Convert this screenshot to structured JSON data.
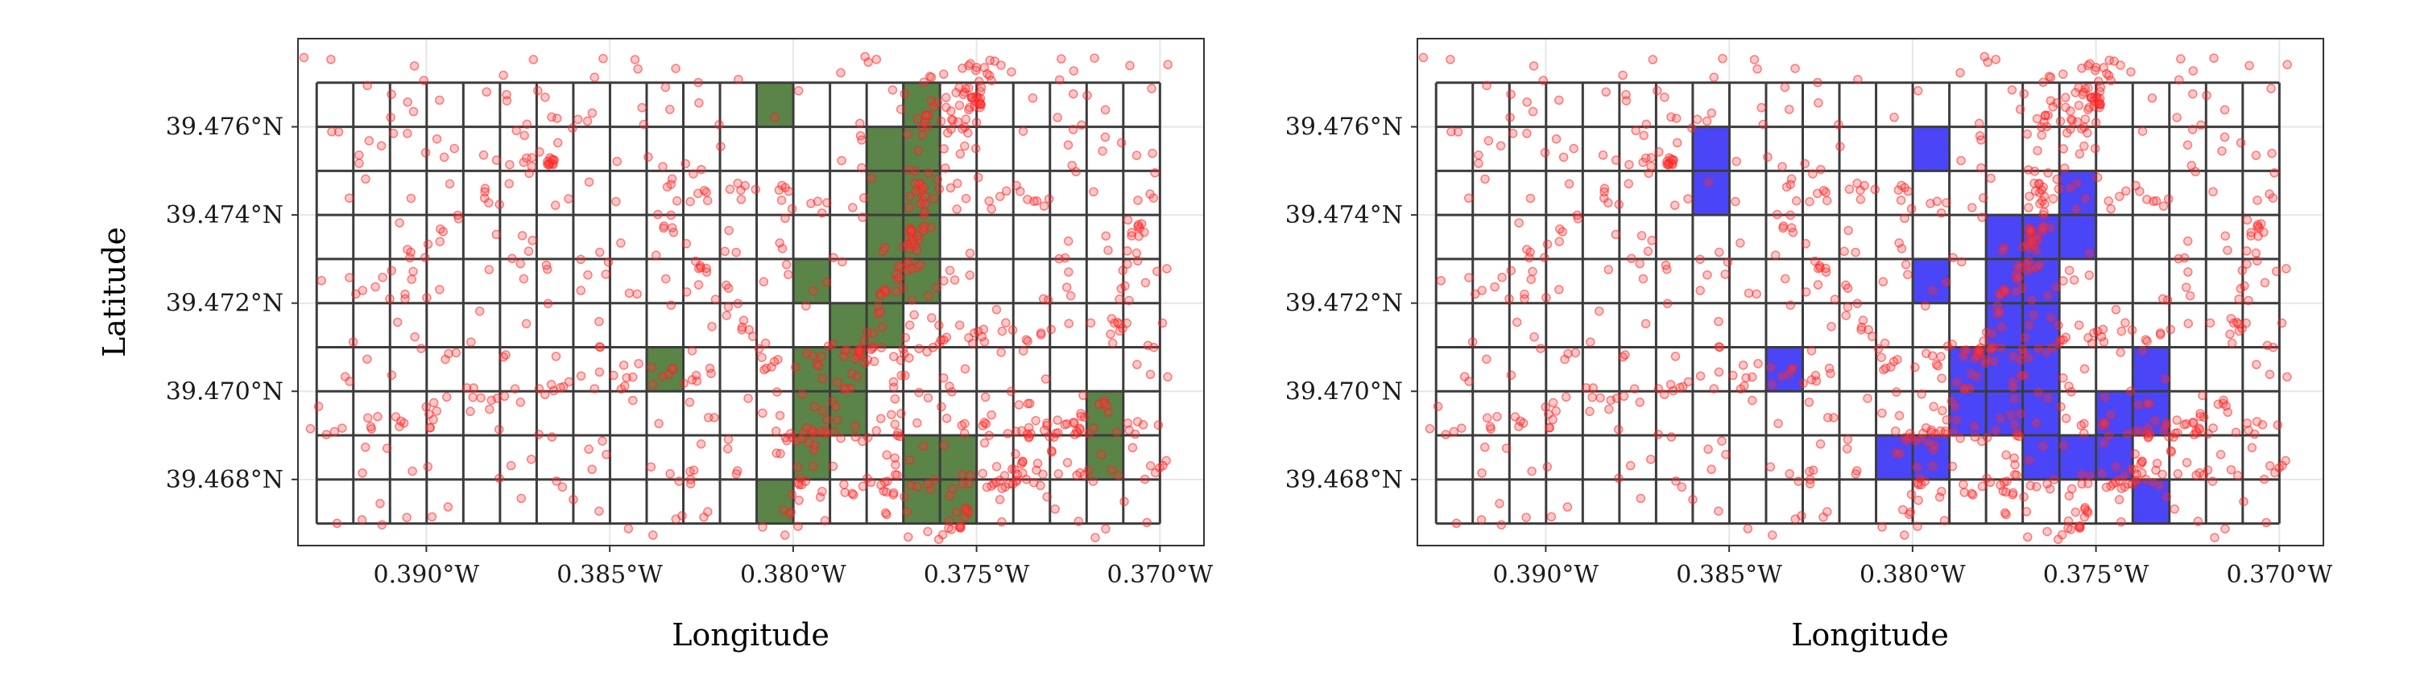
{
  "colors": {
    "panel_border": "#333333",
    "grid_line": "#e6e6e6",
    "cell_border": "#3c3c3c",
    "left_fill": "#5b8448",
    "right_fill": "#4b45f8",
    "points": "#ff1f1f"
  },
  "chart_data": [
    {
      "type": "scatter",
      "panel": "left",
      "title": "",
      "xlabel": "Longitude",
      "ylabel": "Latitude",
      "xlim": [
        -0.3935,
        -0.3688
      ],
      "ylim": [
        39.4665,
        39.478
      ],
      "x_ticks": [
        -0.39,
        -0.385,
        -0.38,
        -0.375,
        -0.37
      ],
      "x_tick_labels": [
        "0.390°W",
        "0.385°W",
        "0.380°W",
        "0.375°W",
        "0.370°W"
      ],
      "y_ticks": [
        39.468,
        39.47,
        39.472,
        39.474,
        39.476
      ],
      "y_tick_labels": [
        "39.468°N",
        "39.470°N",
        "39.472°N",
        "39.474°N",
        "39.476°N"
      ],
      "grid": {
        "x_min": -0.39299,
        "x_max": -0.37,
        "cols": 23,
        "y_min": 39.467,
        "y_max": 39.477,
        "rows": 10
      },
      "highlighted_cells": [
        [
          12,
          0
        ],
        [
          16,
          0
        ],
        [
          15,
          1
        ],
        [
          16,
          1
        ],
        [
          15,
          2
        ],
        [
          16,
          2
        ],
        [
          15,
          3
        ],
        [
          16,
          3
        ],
        [
          13,
          4
        ],
        [
          15,
          4
        ],
        [
          16,
          4
        ],
        [
          14,
          5
        ],
        [
          15,
          5
        ],
        [
          9,
          6
        ],
        [
          13,
          6
        ],
        [
          14,
          6
        ],
        [
          13,
          7
        ],
        [
          14,
          7
        ],
        [
          21,
          7
        ],
        [
          13,
          8
        ],
        [
          16,
          8
        ],
        [
          17,
          8
        ],
        [
          21,
          8
        ],
        [
          12,
          9
        ],
        [
          16,
          9
        ],
        [
          17,
          9
        ]
      ],
      "highlight_color": "#5b8448"
    },
    {
      "type": "scatter",
      "panel": "right",
      "title": "",
      "xlabel": "Longitude",
      "ylabel": "",
      "xlim": [
        -0.3935,
        -0.3688
      ],
      "ylim": [
        39.4665,
        39.478
      ],
      "x_ticks": [
        -0.39,
        -0.385,
        -0.38,
        -0.375,
        -0.37
      ],
      "x_tick_labels": [
        "0.390°W",
        "0.385°W",
        "0.380°W",
        "0.375°W",
        "0.370°W"
      ],
      "y_ticks": [
        39.468,
        39.47,
        39.472,
        39.474,
        39.476
      ],
      "y_tick_labels": [
        "39.468°N",
        "39.470°N",
        "39.472°N",
        "39.474°N",
        "39.476°N"
      ],
      "grid": {
        "x_min": -0.39299,
        "x_max": -0.37,
        "cols": 23,
        "y_min": 39.467,
        "y_max": 39.477,
        "rows": 10
      },
      "highlighted_cells": [
        [
          13,
          1
        ],
        [
          7,
          1
        ],
        [
          17,
          2
        ],
        [
          7,
          2
        ],
        [
          17,
          3
        ],
        [
          15,
          3
        ],
        [
          16,
          3
        ],
        [
          13,
          4
        ],
        [
          15,
          4
        ],
        [
          16,
          4
        ],
        [
          15,
          5
        ],
        [
          16,
          5
        ],
        [
          9,
          6
        ],
        [
          14,
          6
        ],
        [
          15,
          6
        ],
        [
          16,
          6
        ],
        [
          19,
          6
        ],
        [
          14,
          7
        ],
        [
          15,
          7
        ],
        [
          16,
          7
        ],
        [
          18,
          7
        ],
        [
          19,
          7
        ],
        [
          12,
          8
        ],
        [
          13,
          8
        ],
        [
          16,
          8
        ],
        [
          17,
          8
        ],
        [
          18,
          8
        ],
        [
          19,
          9
        ]
      ],
      "highlight_color": "#4b45f8"
    }
  ]
}
